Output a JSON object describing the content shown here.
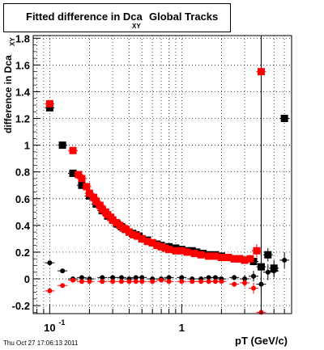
{
  "chart_data": {
    "type": "scatter",
    "title": "Fitted difference in Dca",
    "title_subscript": "XY",
    "title_suffix": "Global Tracks",
    "xlabel": "pT (GeV/c)",
    "ylabel": "difference in Dca",
    "ylabel_subscript": "XY",
    "x_scale": "log",
    "xlim": [
      0.075,
      6.8
    ],
    "ylim": [
      -0.26,
      1.82
    ],
    "x_ticks": [
      {
        "value": 0.1,
        "label": "10",
        "sup": "-1"
      },
      {
        "value": 1,
        "label": "1",
        "sup": ""
      }
    ],
    "y_ticks": [
      -0.2,
      0,
      0.2,
      0.4,
      0.6,
      0.8,
      1,
      1.2,
      1.4,
      1.6,
      1.8
    ],
    "grid": true,
    "series": [
      {
        "name": "",
        "color": "#000000",
        "marker": "square",
        "x": [
          0.1,
          0.125,
          0.15,
          0.175,
          0.2,
          0.225,
          0.25,
          0.275,
          0.3,
          0.325,
          0.35,
          0.375,
          0.4,
          0.425,
          0.45,
          0.475,
          0.5,
          0.55,
          0.6,
          0.65,
          0.7,
          0.8,
          0.9,
          1.0,
          1.1,
          1.2,
          1.3,
          1.45,
          1.6,
          1.8,
          2.0,
          2.25,
          2.5,
          2.75,
          3.0,
          3.5,
          4.0,
          4.5,
          5.0,
          6.0
        ],
        "y": [
          1.28,
          1.0,
          0.79,
          0.7,
          0.62,
          0.56,
          0.51,
          0.47,
          0.44,
          0.41,
          0.39,
          0.37,
          0.35,
          0.34,
          0.33,
          0.32,
          0.3,
          0.29,
          0.27,
          0.26,
          0.25,
          0.24,
          0.23,
          0.22,
          0.21,
          0.21,
          0.2,
          0.19,
          0.18,
          0.18,
          0.17,
          0.16,
          0.15,
          0.15,
          0.14,
          0.13,
          0.09,
          0.18,
          0.08,
          1.2
        ],
        "y_err": [
          0.01,
          0.01,
          0.01,
          0.01,
          0.01,
          0.01,
          0.01,
          0.01,
          0.01,
          0.01,
          0.01,
          0.01,
          0.01,
          0.01,
          0.01,
          0.01,
          0.01,
          0.01,
          0.01,
          0.01,
          0.01,
          0.01,
          0.01,
          0.01,
          0.01,
          0.01,
          0.01,
          0.01,
          0.01,
          0.01,
          0.01,
          0.01,
          0.01,
          0.01,
          0.01,
          0.02,
          0.03,
          0.05,
          0.06,
          0.0
        ]
      },
      {
        "name": "",
        "color": "#ff0000",
        "marker": "square",
        "x": [
          0.1,
          0.15,
          0.165,
          0.175,
          0.19,
          0.2,
          0.215,
          0.225,
          0.24,
          0.25,
          0.265,
          0.275,
          0.29,
          0.3,
          0.32,
          0.34,
          0.36,
          0.38,
          0.4,
          0.43,
          0.46,
          0.5,
          0.55,
          0.6,
          0.65,
          0.7,
          0.75,
          0.8,
          0.9,
          1.0,
          1.1,
          1.25,
          1.4,
          1.6,
          1.8,
          2.0,
          2.25,
          2.5,
          2.75,
          3.0,
          3.3,
          3.7,
          4.0
        ],
        "y": [
          1.31,
          0.96,
          0.78,
          0.75,
          0.69,
          0.64,
          0.61,
          0.58,
          0.55,
          0.52,
          0.5,
          0.48,
          0.46,
          0.44,
          0.42,
          0.4,
          0.38,
          0.37,
          0.35,
          0.33,
          0.32,
          0.3,
          0.28,
          0.27,
          0.25,
          0.24,
          0.23,
          0.22,
          0.21,
          0.21,
          0.2,
          0.19,
          0.18,
          0.17,
          0.17,
          0.16,
          0.16,
          0.15,
          0.15,
          0.14,
          0.15,
          0.21,
          1.55
        ],
        "y_err": [
          0.01,
          0.01,
          0.01,
          0.01,
          0.01,
          0.01,
          0.01,
          0.01,
          0.01,
          0.01,
          0.01,
          0.01,
          0.01,
          0.01,
          0.01,
          0.01,
          0.01,
          0.01,
          0.01,
          0.01,
          0.01,
          0.01,
          0.01,
          0.01,
          0.01,
          0.01,
          0.01,
          0.01,
          0.01,
          0.01,
          0.01,
          0.01,
          0.01,
          0.01,
          0.01,
          0.01,
          0.01,
          0.01,
          0.02,
          0.02,
          0.03,
          0.05,
          0.0
        ]
      },
      {
        "name": "",
        "color": "#000000",
        "marker": "circle",
        "x": [
          0.1,
          0.125,
          0.15,
          0.175,
          0.2,
          0.25,
          0.3,
          0.35,
          0.4,
          0.45,
          0.5,
          0.6,
          0.7,
          0.8,
          1.0,
          1.2,
          1.4,
          1.6,
          1.8,
          2.0,
          2.5,
          3.0,
          3.5,
          4.0,
          4.5,
          5.0,
          6.0
        ],
        "y": [
          0.12,
          0.06,
          0.0,
          0.01,
          0.0,
          0.01,
          0.01,
          0.01,
          0.0,
          0.01,
          0.01,
          0.0,
          0.0,
          0.01,
          0.01,
          0.0,
          0.0,
          0.01,
          0.01,
          0.0,
          0.01,
          0.0,
          0.02,
          -0.04,
          0.05,
          0.06,
          0.14
        ],
        "y_err": [
          0.01,
          0.01,
          0.01,
          0.01,
          0.01,
          0.01,
          0.01,
          0.01,
          0.01,
          0.01,
          0.01,
          0.01,
          0.01,
          0.01,
          0.01,
          0.01,
          0.01,
          0.01,
          0.01,
          0.01,
          0.02,
          0.03,
          0.04,
          0.08,
          0.06,
          0.05,
          0.06
        ]
      },
      {
        "name": "",
        "color": "#ff0000",
        "marker": "circle",
        "x": [
          0.1,
          0.125,
          0.15,
          0.175,
          0.2,
          0.25,
          0.3,
          0.35,
          0.4,
          0.45,
          0.5,
          0.6,
          0.7,
          0.8,
          1.0,
          1.2,
          1.4,
          1.6,
          1.8,
          2.0,
          2.5,
          3.0,
          3.5,
          4.0
        ],
        "y": [
          -0.09,
          -0.05,
          -0.01,
          -0.02,
          -0.02,
          -0.02,
          -0.02,
          -0.02,
          -0.02,
          -0.02,
          -0.02,
          -0.02,
          -0.01,
          -0.02,
          -0.02,
          -0.02,
          -0.02,
          -0.02,
          -0.02,
          -0.02,
          -0.04,
          -0.03,
          -0.07,
          -0.25
        ],
        "y_err": [
          0.01,
          0.01,
          0.01,
          0.01,
          0.01,
          0.01,
          0.01,
          0.01,
          0.01,
          0.01,
          0.01,
          0.01,
          0.01,
          0.01,
          0.01,
          0.01,
          0.01,
          0.01,
          0.01,
          0.01,
          0.02,
          0.03,
          0.04,
          0.0
        ]
      }
    ],
    "extra_error_bar": {
      "x": 4.0,
      "y_low": -0.26,
      "y_high": 1.82
    }
  },
  "footer": "Thu Oct 27 17:06:13 2011"
}
